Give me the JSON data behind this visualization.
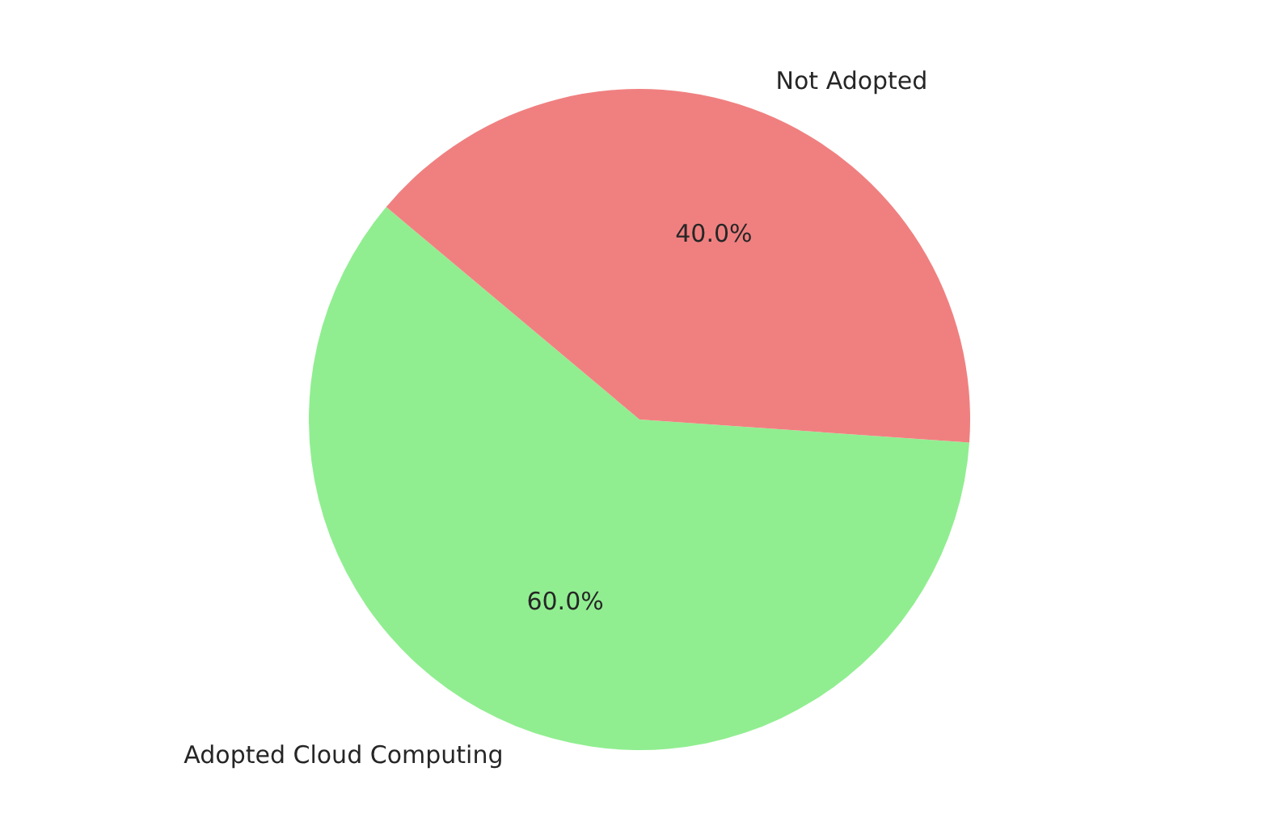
{
  "chart_data": {
    "type": "pie",
    "categories": [
      "Adopted Cloud Computing",
      "Not Adopted"
    ],
    "values": [
      60,
      40
    ],
    "colors": [
      "#90ee90",
      "#f08080"
    ],
    "value_labels": [
      "60.0%",
      "40.0%"
    ],
    "legend": false
  }
}
